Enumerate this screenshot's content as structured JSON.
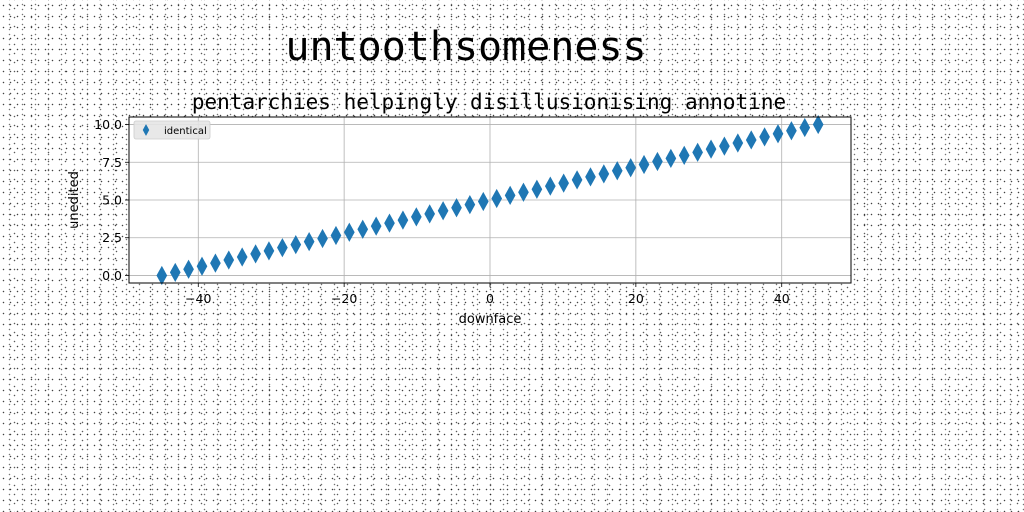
{
  "suptitle": "untoothsomeness",
  "chart_data": {
    "type": "scatter",
    "title": "pentarchies helpingly disillusionising annotine",
    "xlabel": "downface",
    "ylabel": "unedited",
    "xlim": [
      -49.5,
      49.5
    ],
    "ylim": [
      -0.5,
      10.5
    ],
    "xticks": [
      -40,
      -20,
      0,
      20,
      40
    ],
    "xtick_labels": [
      "−40",
      "−20",
      "0",
      "20",
      "40"
    ],
    "yticks": [
      0.0,
      2.5,
      5.0,
      7.5,
      10.0
    ],
    "ytick_labels": [
      "0.0",
      "2.5",
      "5.0",
      "7.5",
      "10.0"
    ],
    "grid": true,
    "legend_position": "top-left",
    "series": [
      {
        "name": "identical",
        "marker": "thin-diamond",
        "color": "#1f77b4",
        "x": [
          -45.0,
          -43.16,
          -41.33,
          -39.49,
          -37.65,
          -35.82,
          -33.98,
          -32.14,
          -30.31,
          -28.47,
          -26.63,
          -24.8,
          -22.96,
          -21.12,
          -19.29,
          -17.45,
          -15.61,
          -13.78,
          -11.94,
          -10.1,
          -8.27,
          -6.43,
          -4.59,
          -2.76,
          -0.92,
          0.92,
          2.76,
          4.59,
          6.43,
          8.27,
          10.1,
          11.94,
          13.78,
          15.61,
          17.45,
          19.29,
          21.12,
          22.96,
          24.8,
          26.63,
          28.47,
          30.31,
          32.14,
          33.98,
          35.82,
          37.65,
          39.49,
          41.33,
          43.16,
          45.0
        ],
        "y": [
          0.0,
          0.2,
          0.41,
          0.61,
          0.82,
          1.02,
          1.22,
          1.43,
          1.63,
          1.84,
          2.04,
          2.24,
          2.45,
          2.65,
          2.86,
          3.06,
          3.27,
          3.47,
          3.67,
          3.88,
          4.08,
          4.29,
          4.49,
          4.69,
          4.9,
          5.1,
          5.31,
          5.51,
          5.71,
          5.92,
          6.12,
          6.33,
          6.53,
          6.73,
          6.94,
          7.14,
          7.35,
          7.55,
          7.76,
          7.96,
          8.16,
          8.37,
          8.57,
          8.78,
          8.98,
          9.18,
          9.39,
          9.59,
          9.8,
          10.0
        ]
      }
    ]
  }
}
